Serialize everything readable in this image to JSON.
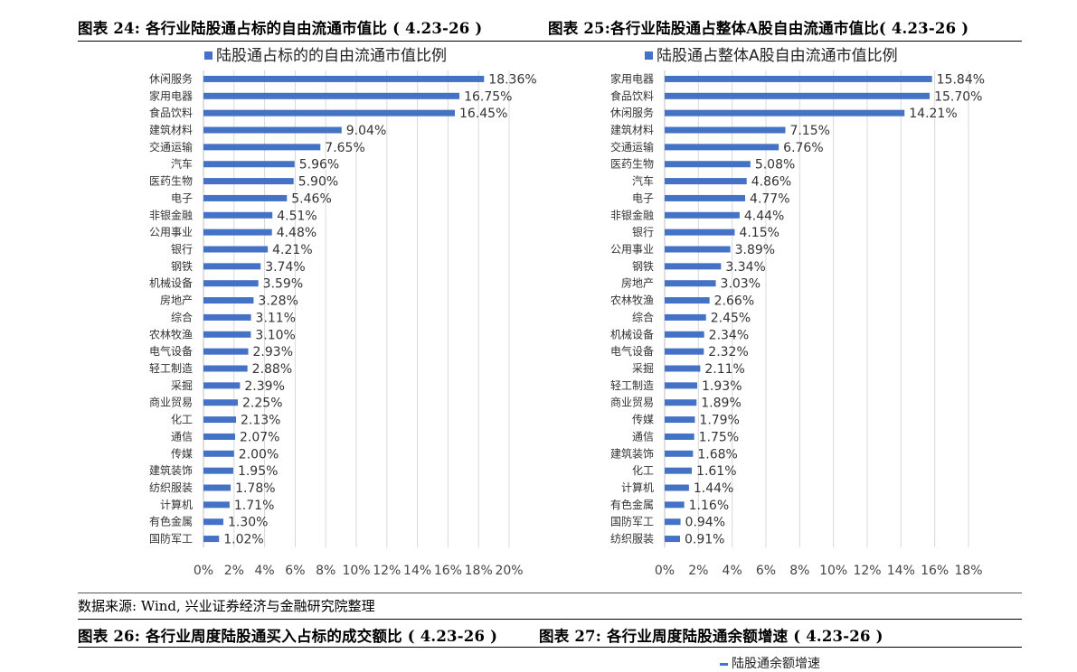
{
  "headers": {
    "fig24": "图表 24: 各行业陆股通占标的自由流通市值比 ( 4.23-26 )",
    "fig25": "图表 25:各行业陆股通占整体A股自由流通市值比( 4.23-26 )",
    "fig26": "图表 26: 各行业周度陆股通买入占标的成交额比 ( 4.23-26 )",
    "fig27": "图表 27: 各行业周度陆股通余额增速 ( 4.23-26 )"
  },
  "source": "数据来源: Wind, 兴业证券经济与金融研究院整理",
  "partial_legend": "陆股通余额增速",
  "colors": {
    "bar": "#4472C4",
    "grid": "#d9d9d9"
  },
  "chart_data": [
    {
      "type": "bar",
      "orientation": "horizontal",
      "legend": "陆股通占标的的自由流通市值比例",
      "legend_position": "top-left",
      "grid": true,
      "xlim": [
        0,
        20
      ],
      "ticks": [
        "0%",
        "2%",
        "4%",
        "6%",
        "8%",
        "10%",
        "12%",
        "14%",
        "16%",
        "18%",
        "20%"
      ],
      "categories": [
        "休闲服务",
        "家用电器",
        "食品饮料",
        "建筑材料",
        "交通运输",
        "汽车",
        "医药生物",
        "电子",
        "非银金融",
        "公用事业",
        "银行",
        "钢铁",
        "机械设备",
        "房地产",
        "综合",
        "农林牧渔",
        "电气设备",
        "轻工制造",
        "采掘",
        "商业贸易",
        "化工",
        "通信",
        "传媒",
        "建筑装饰",
        "纺织服装",
        "计算机",
        "有色金属",
        "国防军工"
      ],
      "values": [
        18.36,
        16.75,
        16.45,
        9.04,
        7.65,
        5.96,
        5.9,
        5.46,
        4.51,
        4.48,
        4.21,
        3.74,
        3.59,
        3.28,
        3.11,
        3.1,
        2.93,
        2.88,
        2.39,
        2.25,
        2.13,
        2.07,
        2.0,
        1.95,
        1.78,
        1.71,
        1.3,
        1.02
      ],
      "labels": [
        "18.36%",
        "16.75%",
        "16.45%",
        "9.04%",
        "7.65%",
        "5.96%",
        "5.90%",
        "5.46%",
        "4.51%",
        "4.48%",
        "4.21%",
        "3.74%",
        "3.59%",
        "3.28%",
        "3.11%",
        "3.10%",
        "2.93%",
        "2.88%",
        "2.39%",
        "2.25%",
        "2.13%",
        "2.07%",
        "2.00%",
        "1.95%",
        "1.78%",
        "1.71%",
        "1.30%",
        "1.02%"
      ]
    },
    {
      "type": "bar",
      "orientation": "horizontal",
      "legend": "陆股通占整体A股自由流通市值比例",
      "legend_position": "top-left",
      "grid": true,
      "xlim": [
        0,
        18
      ],
      "ticks": [
        "0%",
        "2%",
        "4%",
        "6%",
        "8%",
        "10%",
        "12%",
        "14%",
        "16%",
        "18%"
      ],
      "categories": [
        "家用电器",
        "食品饮料",
        "休闲服务",
        "建筑材料",
        "交通运输",
        "医药生物",
        "汽车",
        "电子",
        "非银金融",
        "银行",
        "公用事业",
        "钢铁",
        "房地产",
        "农林牧渔",
        "综合",
        "机械设备",
        "电气设备",
        "采掘",
        "轻工制造",
        "商业贸易",
        "传媒",
        "通信",
        "建筑装饰",
        "化工",
        "计算机",
        "有色金属",
        "国防军工",
        "纺织服装"
      ],
      "values": [
        15.84,
        15.7,
        14.21,
        7.15,
        6.76,
        5.08,
        4.86,
        4.77,
        4.44,
        4.15,
        3.89,
        3.34,
        3.03,
        2.66,
        2.45,
        2.34,
        2.32,
        2.11,
        1.93,
        1.89,
        1.79,
        1.75,
        1.68,
        1.61,
        1.44,
        1.16,
        0.94,
        0.91
      ],
      "labels": [
        "15.84%",
        "15.70%",
        "14.21%",
        "7.15%",
        "6.76%",
        "5.08%",
        "4.86%",
        "4.77%",
        "4.44%",
        "4.15%",
        "3.89%",
        "3.34%",
        "3.03%",
        "2.66%",
        "2.45%",
        "2.34%",
        "2.32%",
        "2.11%",
        "1.93%",
        "1.89%",
        "1.79%",
        "1.75%",
        "1.68%",
        "1.61%",
        "1.44%",
        "1.16%",
        "0.94%",
        "0.91%"
      ]
    }
  ]
}
